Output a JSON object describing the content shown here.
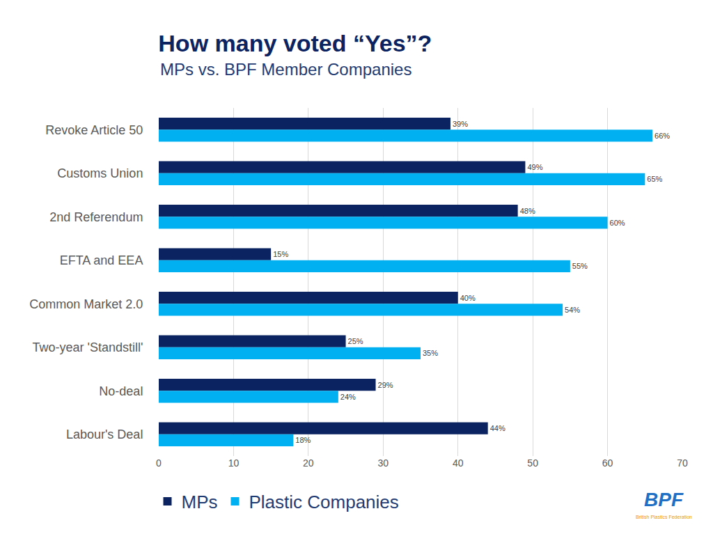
{
  "chart_data": {
    "type": "bar",
    "orientation": "horizontal",
    "title": "How many voted “Yes”?",
    "subtitle": "MPs vs. BPF Member Companies",
    "categories": [
      "Revoke Article 50",
      "Customs Union",
      "2nd Referendum",
      "EFTA and EEA",
      "Common Market 2.0",
      "Two-year 'Standstill'",
      "No-deal",
      "Labour's Deal"
    ],
    "series": [
      {
        "name": "MPs",
        "color": "#0b2461",
        "values": [
          39,
          49,
          48,
          15,
          40,
          25,
          29,
          44
        ],
        "value_labels": [
          "39%",
          "49%",
          "48%",
          "15%",
          "40%",
          "25%",
          "29%",
          "44%"
        ]
      },
      {
        "name": "Plastic Companies",
        "color": "#00b0f0",
        "values": [
          66,
          65,
          60,
          55,
          54,
          35,
          24,
          18
        ],
        "value_labels": [
          "66%",
          "65%",
          "60%",
          "55%",
          "54%",
          "35%",
          "24%",
          "18%"
        ]
      }
    ],
    "xlim": [
      0,
      70
    ],
    "xticks": [
      0,
      10,
      20,
      30,
      40,
      50,
      60,
      70
    ],
    "grid": true,
    "data_labels": true,
    "legend": "bottom left",
    "annotations": [
      "BPF",
      "British Plastics Federation"
    ]
  }
}
